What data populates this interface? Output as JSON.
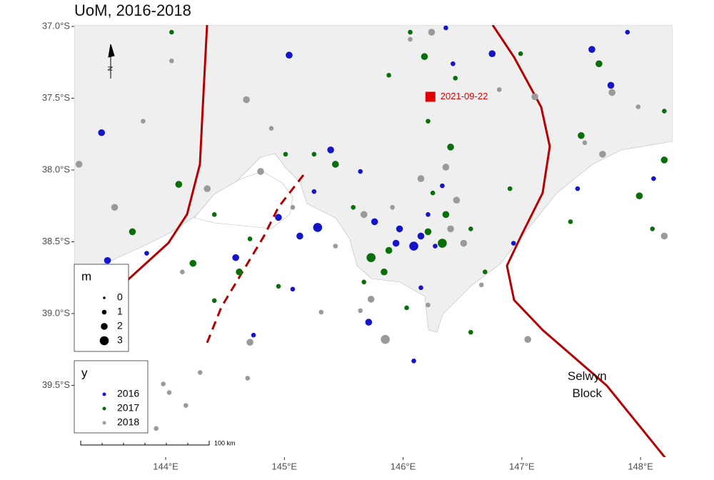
{
  "chart_data": {
    "type": "scatter",
    "title": "UoM, 2016-2018",
    "xlim": [
      143.23,
      148.27
    ],
    "ylim": [
      -40.0,
      -36.99
    ],
    "xticks": [
      {
        "value": 144,
        "label": "144°E"
      },
      {
        "value": 145,
        "label": "145°E"
      },
      {
        "value": 146,
        "label": "146°E"
      },
      {
        "value": 147,
        "label": "147°E"
      },
      {
        "value": 148,
        "label": "148°E"
      }
    ],
    "yticks": [
      {
        "value": -37,
        "label": "37.0°S"
      },
      {
        "value": -37.5,
        "label": "37.5°S"
      },
      {
        "value": -38,
        "label": "38.0°S"
      },
      {
        "value": -38.5,
        "label": "38.5°S"
      },
      {
        "value": -39,
        "label": "39.0°S"
      },
      {
        "value": -39.5,
        "label": "39.5°S"
      }
    ],
    "size_legend": {
      "title": "m",
      "values": [
        0,
        1,
        2,
        3
      ]
    },
    "legend_title": "y",
    "series": [
      {
        "name": "2016",
        "color": "#1414c8",
        "x": [
          145.04,
          143.46,
          146.75,
          146.36,
          147.59,
          147.89,
          145.39,
          145.25,
          145.64,
          144.95,
          145.13,
          145.28,
          145.76,
          145.94,
          146.09,
          146.15,
          146.21,
          146.33,
          144.59,
          145.07,
          144.74,
          145.71,
          146.15,
          146.09,
          146.93,
          147.47,
          148.11,
          143.84,
          146.42,
          147.75,
          145.97,
          146.27,
          143.51
        ],
        "y": [
          -37.2,
          -37.74,
          -37.19,
          -37.01,
          -37.16,
          -37.04,
          -37.86,
          -38.15,
          -38.01,
          -38.33,
          -38.46,
          -38.4,
          -38.36,
          -38.51,
          -38.53,
          -38.46,
          -38.31,
          -38.11,
          -38.61,
          -38.83,
          -39.15,
          -39.06,
          -38.82,
          -39.33,
          -38.51,
          -38.13,
          -38.06,
          -38.58,
          -37.26,
          -37.41,
          -38.41,
          -38.53,
          -38.63
        ],
        "size": [
          2,
          2,
          2,
          1,
          2,
          1,
          2,
          1,
          1,
          2,
          2,
          3,
          2,
          2,
          3,
          2,
          1,
          1,
          2,
          1,
          1,
          2,
          1,
          1,
          1,
          1,
          1,
          1,
          1,
          2,
          2,
          1,
          2
        ]
      },
      {
        "name": "2017",
        "color": "#0a6e0a",
        "x": [
          144.05,
          146.06,
          146.18,
          145.88,
          146.44,
          146.21,
          146.99,
          147.65,
          148.2,
          144.11,
          143.72,
          144.23,
          144.41,
          144.71,
          145.01,
          145.25,
          145.43,
          145.58,
          145.73,
          145.88,
          146.21,
          146.36,
          146.4,
          146.25,
          146.57,
          146.69,
          146.57,
          146.03,
          144.95,
          144.62,
          144.41,
          147.5,
          147.99,
          148.2,
          148.1,
          147.41,
          146.9,
          145.67,
          145.84,
          146.33
        ],
        "y": [
          -37.04,
          -37.04,
          -37.21,
          -37.34,
          -37.36,
          -37.66,
          -37.19,
          -37.26,
          -37.59,
          -38.1,
          -38.43,
          -38.65,
          -38.31,
          -38.48,
          -37.89,
          -37.89,
          -37.96,
          -38.26,
          -38.61,
          -38.56,
          -38.43,
          -38.31,
          -37.84,
          -38.16,
          -38.41,
          -38.71,
          -39.13,
          -38.96,
          -38.81,
          -38.71,
          -38.91,
          -37.76,
          -38.18,
          -37.93,
          -38.41,
          -38.36,
          -38.13,
          -38.78,
          -38.71,
          -38.51
        ],
        "size": [
          1,
          1,
          2,
          1,
          1,
          1,
          1,
          2,
          1,
          2,
          2,
          2,
          1,
          1,
          1,
          1,
          2,
          1,
          3,
          2,
          2,
          2,
          2,
          1,
          1,
          1,
          1,
          1,
          1,
          2,
          1,
          2,
          2,
          2,
          1,
          1,
          1,
          1,
          2,
          3
        ]
      },
      {
        "name": "2018",
        "color": "#9a9a9a",
        "x": [
          144.05,
          144.68,
          144.89,
          144.35,
          144.8,
          145.07,
          145.43,
          145.67,
          145.91,
          146.15,
          146.36,
          146.24,
          146.06,
          146.81,
          147.11,
          147.76,
          147.53,
          147.68,
          148.2,
          147.98,
          146.45,
          146.4,
          146.51,
          145.73,
          145.85,
          145.64,
          144.71,
          144.69,
          144.29,
          143.98,
          144.03,
          144.17,
          143.92,
          147.05,
          146.66,
          146.21,
          143.57,
          143.27,
          143.81,
          144.14,
          145.31
        ],
        "y": [
          -37.24,
          -37.51,
          -37.71,
          -38.13,
          -38.01,
          -38.26,
          -38.53,
          -38.31,
          -38.26,
          -38.06,
          -37.98,
          -37.04,
          -37.09,
          -37.44,
          -37.49,
          -37.46,
          -37.81,
          -37.89,
          -38.46,
          -37.56,
          -38.21,
          -38.41,
          -38.51,
          -38.9,
          -39.18,
          -38.98,
          -39.2,
          -39.45,
          -39.41,
          -39.49,
          -39.55,
          -39.64,
          -39.8,
          -39.18,
          -38.8,
          -38.94,
          -38.26,
          -37.96,
          -37.66,
          -38.71,
          -38.99
        ],
        "size": [
          1,
          2,
          1,
          2,
          2,
          1,
          1,
          2,
          1,
          2,
          2,
          2,
          1,
          1,
          2,
          2,
          1,
          2,
          2,
          1,
          2,
          2,
          2,
          2,
          3,
          1,
          2,
          1,
          1,
          1,
          1,
          1,
          1,
          2,
          1,
          1,
          2,
          2,
          1,
          1,
          1
        ]
      }
    ],
    "annotations": [
      {
        "text": "2021-09-22",
        "x": 146.23,
        "y": -37.49,
        "color": "#e00000"
      },
      {
        "text": "Selwyn",
        "x": 147.55,
        "y": -39.44
      },
      {
        "text": "Block",
        "x": 147.55,
        "y": -39.56
      }
    ],
    "north": "N",
    "scale_bar": "100 km"
  }
}
